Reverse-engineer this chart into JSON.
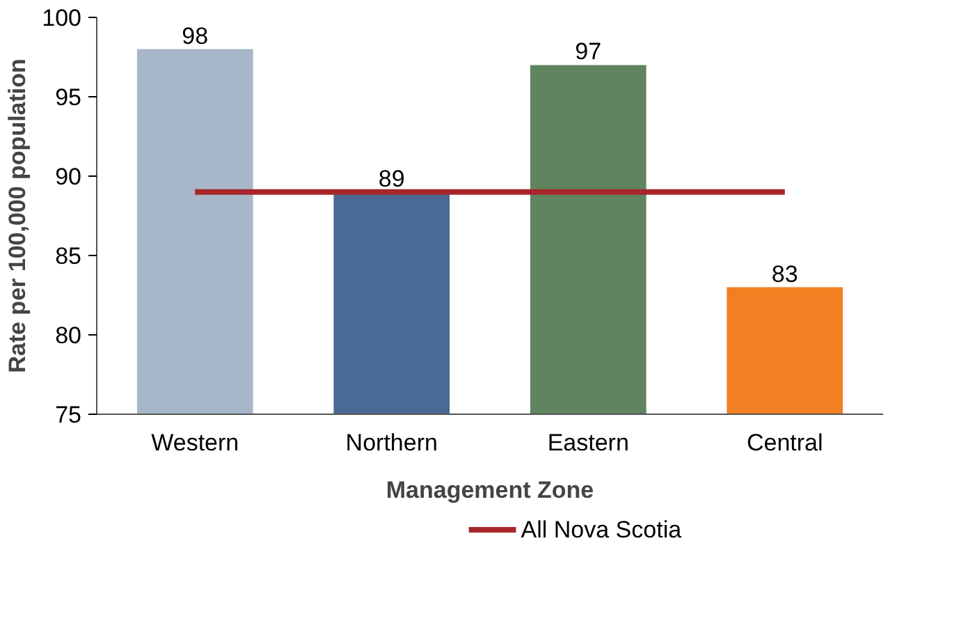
{
  "chart_data": {
    "type": "bar",
    "xlabel": "Management Zone",
    "ylabel": "Rate per 100,000 population",
    "categories": [
      "Western",
      "Northern",
      "Eastern",
      "Central"
    ],
    "values": [
      98,
      89,
      97,
      83
    ],
    "colors": [
      "#a7b7c9",
      "#4a6a95",
      "#5f845f",
      "#f27f22"
    ],
    "value_labels": [
      "98",
      "89",
      "97",
      "83"
    ],
    "series": [
      {
        "type": "line",
        "name": "All Nova Scotia",
        "color": "#a6262a",
        "values": [
          89,
          89,
          89,
          89
        ]
      }
    ],
    "ylim": [
      75,
      100
    ],
    "yticks": [
      75,
      80,
      85,
      90,
      95,
      100
    ],
    "grid": false,
    "legend": "bottom"
  }
}
